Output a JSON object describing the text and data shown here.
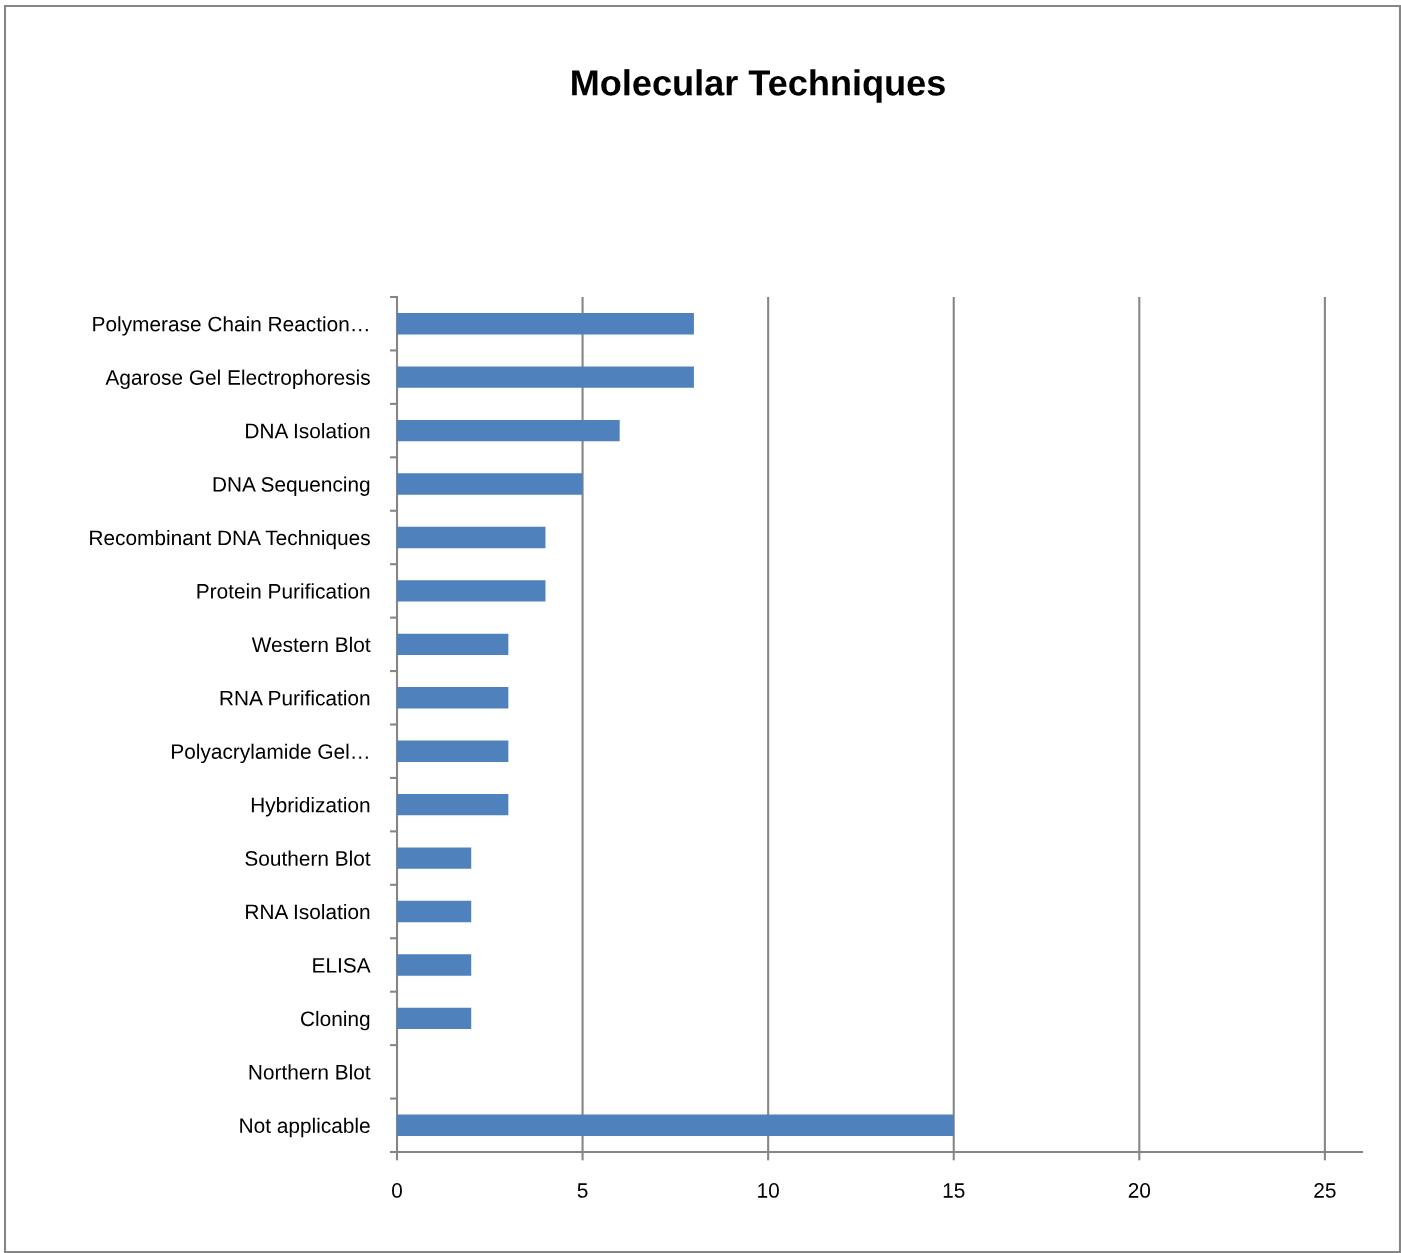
{
  "chart_data": {
    "type": "bar",
    "orientation": "horizontal",
    "title": "Molecular Techniques",
    "categories": [
      "Polymerase Chain Reaction…",
      "Agarose Gel Electrophoresis",
      "DNA Isolation",
      "DNA Sequencing",
      "Recombinant DNA Techniques",
      "Protein Purification",
      "Western Blot",
      "RNA Purification",
      "Polyacrylamide Gel…",
      "Hybridization",
      "Southern Blot",
      "RNA Isolation",
      "ELISA",
      "Cloning",
      "Northern Blot",
      "Not applicable"
    ],
    "values": [
      8,
      8,
      6,
      5,
      4,
      4,
      3,
      3,
      3,
      3,
      2,
      2,
      2,
      2,
      0,
      15
    ],
    "color": "#4f81bd",
    "xlim": [
      0,
      26
    ],
    "xticks": [
      0,
      5,
      10,
      15,
      20,
      25
    ],
    "grid": "x"
  }
}
